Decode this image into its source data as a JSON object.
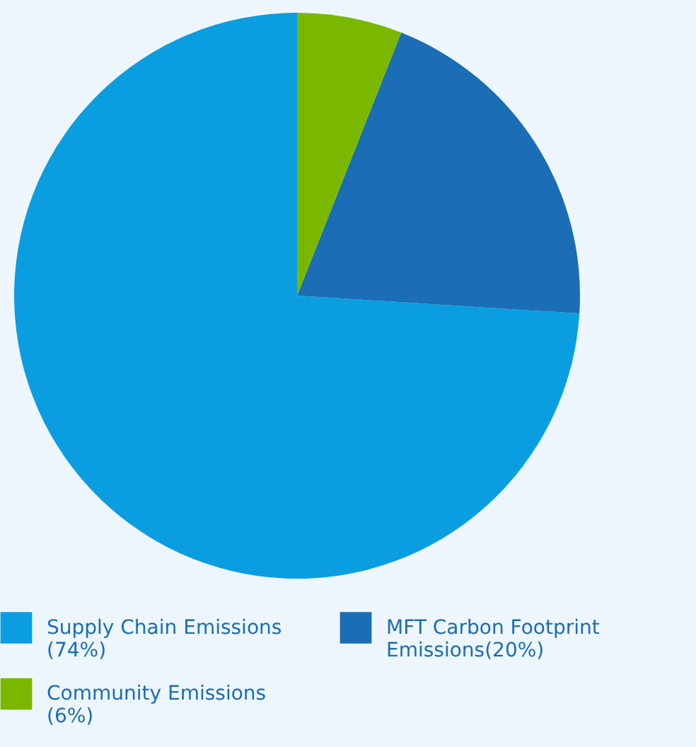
{
  "chart_data": {
    "type": "pie",
    "categories": [
      "Supply Chain Emissions (74%)",
      "MFT Carbon Footprint Emissions(20%)",
      "Community Emissions (6%)"
    ],
    "values": [
      74,
      20,
      6
    ],
    "colors": [
      "#0a9ee0",
      "#1b6db5",
      "#7ab800"
    ],
    "legend": "bottom"
  }
}
